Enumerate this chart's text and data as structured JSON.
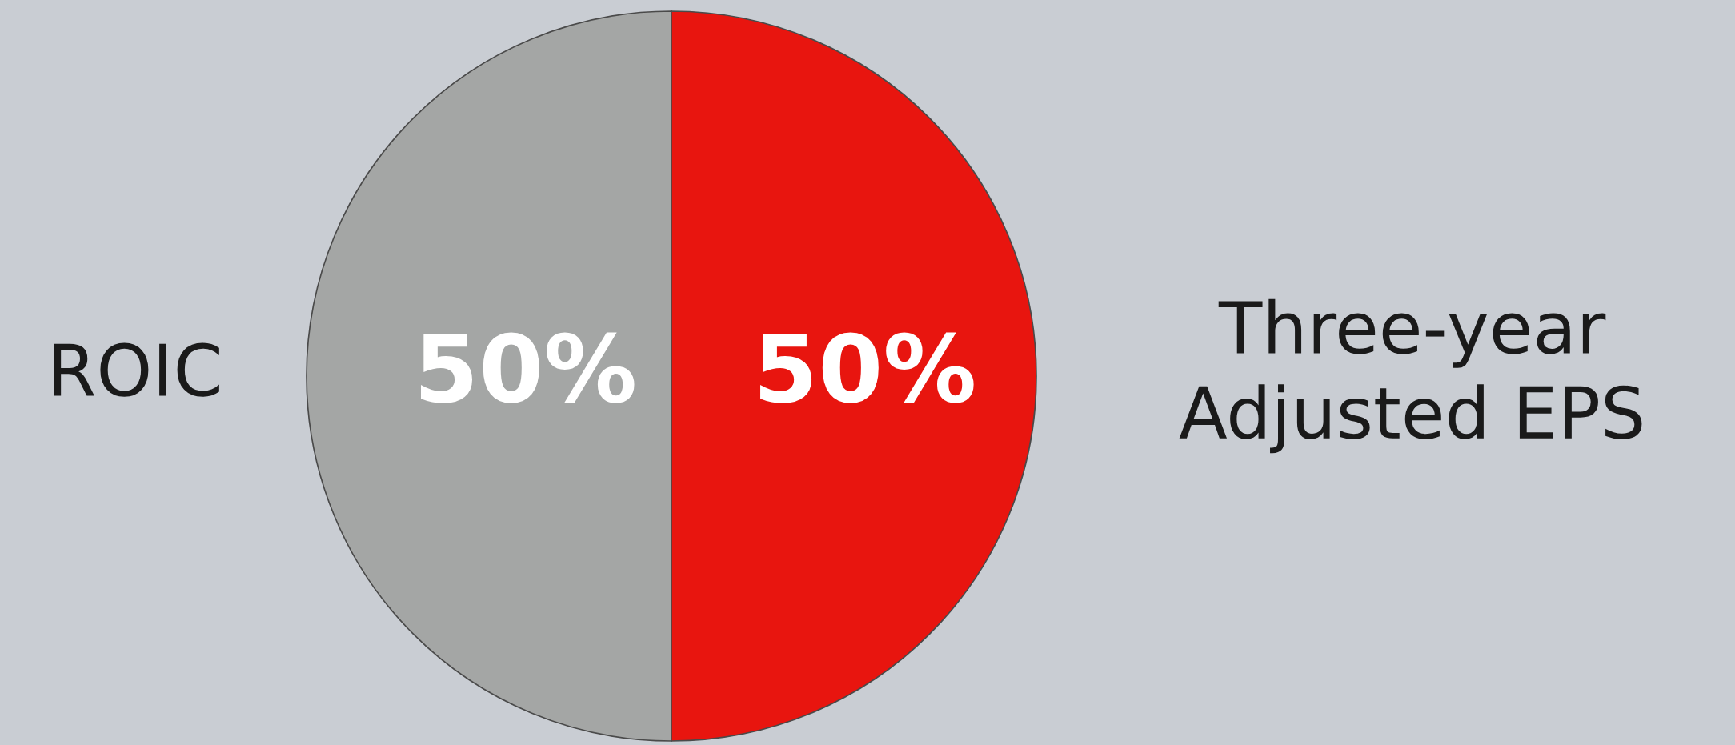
{
  "chart_data": {
    "type": "pie",
    "categories": [
      "ROIC",
      "Three-year\nAdjusted EPS"
    ],
    "values": [
      50,
      50
    ],
    "colors": [
      "#a4a6a5",
      "#e8150f"
    ],
    "value_labels": [
      "50%",
      "50%"
    ]
  }
}
